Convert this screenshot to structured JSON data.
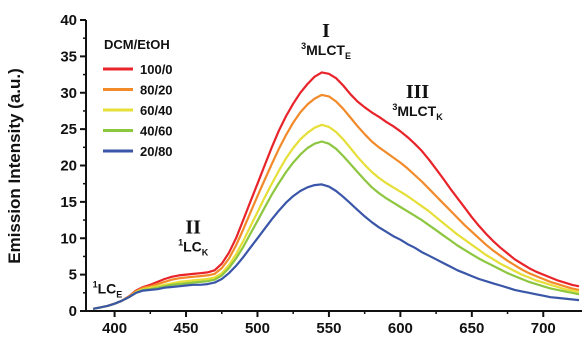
{
  "chart_data": {
    "type": "line",
    "title": "",
    "xlabel": "",
    "ylabel": "Emission Intensity (a.u.)",
    "xlim": [
      380,
      725
    ],
    "ylim": [
      0,
      40
    ],
    "x_ticks": [
      400,
      450,
      500,
      550,
      600,
      650,
      700
    ],
    "y_ticks": [
      0,
      5,
      10,
      15,
      20,
      25,
      30,
      35,
      40
    ],
    "grid": false,
    "legend": {
      "title": "DCM/EtOH",
      "position": "top-left"
    },
    "x": [
      385,
      390,
      395,
      400,
      405,
      410,
      415,
      420,
      425,
      430,
      435,
      440,
      445,
      450,
      455,
      460,
      465,
      470,
      475,
      480,
      485,
      490,
      495,
      500,
      505,
      510,
      515,
      520,
      525,
      530,
      535,
      540,
      545,
      550,
      555,
      560,
      565,
      570,
      575,
      580,
      585,
      590,
      595,
      600,
      605,
      610,
      615,
      620,
      625,
      630,
      635,
      640,
      645,
      650,
      655,
      660,
      665,
      670,
      675,
      680,
      685,
      690,
      695,
      700,
      705,
      710,
      715,
      720,
      725
    ],
    "series": [
      {
        "name": "100/0",
        "color": "#e8232a",
        "values": [
          0.3,
          0.5,
          0.7,
          1.0,
          1.4,
          2.0,
          2.8,
          3.3,
          3.6,
          4.0,
          4.4,
          4.7,
          4.9,
          5.0,
          5.1,
          5.2,
          5.3,
          5.6,
          6.5,
          8.0,
          10.0,
          12.5,
          15.0,
          17.5,
          20.0,
          22.5,
          24.8,
          26.8,
          28.5,
          30.0,
          31.2,
          32.2,
          32.8,
          32.6,
          32.0,
          31.0,
          29.8,
          28.8,
          28.0,
          27.3,
          26.7,
          26.0,
          25.4,
          24.7,
          23.9,
          23.0,
          22.0,
          20.8,
          19.5,
          18.2,
          16.8,
          15.5,
          14.2,
          12.9,
          11.7,
          10.6,
          9.6,
          8.7,
          7.9,
          7.1,
          6.5,
          5.9,
          5.4,
          5.0,
          4.6,
          4.2,
          3.9,
          3.6,
          3.4
        ]
      },
      {
        "name": "80/20",
        "color": "#f28a2a",
        "values": [
          0.3,
          0.5,
          0.7,
          1.0,
          1.4,
          2.0,
          2.7,
          3.2,
          3.4,
          3.7,
          4.0,
          4.3,
          4.5,
          4.6,
          4.7,
          4.8,
          4.9,
          5.1,
          5.9,
          7.2,
          9.0,
          11.2,
          13.5,
          15.8,
          18.0,
          20.2,
          22.3,
          24.2,
          25.9,
          27.3,
          28.4,
          29.2,
          29.7,
          29.5,
          28.8,
          27.8,
          26.6,
          25.4,
          24.3,
          23.3,
          22.5,
          21.8,
          21.1,
          20.4,
          19.6,
          18.7,
          17.8,
          16.8,
          15.8,
          14.8,
          13.8,
          12.8,
          11.8,
          10.9,
          10.0,
          9.1,
          8.3,
          7.6,
          6.9,
          6.3,
          5.7,
          5.2,
          4.8,
          4.4,
          4.0,
          3.7,
          3.4,
          3.1,
          2.9
        ]
      },
      {
        "name": "60/40",
        "color": "#e6df38",
        "values": [
          0.3,
          0.5,
          0.7,
          1.0,
          1.4,
          1.9,
          2.6,
          3.0,
          3.2,
          3.4,
          3.6,
          3.8,
          4.0,
          4.1,
          4.2,
          4.3,
          4.4,
          4.6,
          5.2,
          6.3,
          7.8,
          9.6,
          11.6,
          13.6,
          15.6,
          17.5,
          19.3,
          21.0,
          22.4,
          23.6,
          24.5,
          25.2,
          25.6,
          25.3,
          24.6,
          23.6,
          22.4,
          21.2,
          20.1,
          19.1,
          18.3,
          17.6,
          17.0,
          16.4,
          15.8,
          15.1,
          14.4,
          13.7,
          12.9,
          12.1,
          11.3,
          10.5,
          9.8,
          9.1,
          8.4,
          7.7,
          7.1,
          6.5,
          6.0,
          5.5,
          5.0,
          4.6,
          4.2,
          3.9,
          3.6,
          3.3,
          3.0,
          2.8,
          2.6
        ]
      },
      {
        "name": "40/60",
        "color": "#8dc63f",
        "values": [
          0.3,
          0.5,
          0.7,
          1.0,
          1.4,
          1.9,
          2.5,
          2.9,
          3.0,
          3.2,
          3.4,
          3.6,
          3.7,
          3.8,
          3.9,
          4.0,
          4.1,
          4.3,
          4.9,
          5.9,
          7.2,
          8.8,
          10.6,
          12.4,
          14.2,
          16.0,
          17.6,
          19.1,
          20.4,
          21.5,
          22.4,
          23.0,
          23.3,
          23.0,
          22.3,
          21.3,
          20.2,
          19.1,
          18.0,
          17.0,
          16.2,
          15.5,
          14.9,
          14.3,
          13.7,
          13.1,
          12.5,
          11.8,
          11.1,
          10.4,
          9.7,
          9.0,
          8.4,
          7.8,
          7.2,
          6.7,
          6.2,
          5.7,
          5.2,
          4.8,
          4.4,
          4.0,
          3.7,
          3.4,
          3.1,
          2.9,
          2.7,
          2.5,
          2.3
        ]
      },
      {
        "name": "20/80",
        "color": "#3a56a8",
        "values": [
          0.3,
          0.5,
          0.7,
          1.0,
          1.4,
          1.9,
          2.5,
          2.8,
          2.9,
          3.0,
          3.2,
          3.3,
          3.4,
          3.5,
          3.6,
          3.6,
          3.7,
          3.9,
          4.4,
          5.2,
          6.2,
          7.4,
          8.7,
          10.0,
          11.3,
          12.6,
          13.8,
          14.9,
          15.8,
          16.5,
          17.0,
          17.3,
          17.4,
          17.1,
          16.5,
          15.7,
          14.8,
          13.9,
          13.0,
          12.2,
          11.5,
          10.9,
          10.3,
          9.8,
          9.2,
          8.7,
          8.1,
          7.6,
          7.1,
          6.6,
          6.1,
          5.6,
          5.2,
          4.8,
          4.4,
          4.1,
          3.8,
          3.5,
          3.2,
          2.9,
          2.7,
          2.5,
          2.3,
          2.1,
          1.9,
          1.8,
          1.7,
          1.6,
          1.5
        ]
      }
    ],
    "annotations": [
      {
        "roman": "I",
        "label": "MLCT",
        "sup": "3",
        "sub": "E",
        "x": 548,
        "y": 35.2
      },
      {
        "roman": "II",
        "label": "LC",
        "sup": "1",
        "sub": "K",
        "x": 455,
        "y": 8.2
      },
      {
        "roman": "III",
        "label": "MLCT",
        "sup": "3",
        "sub": "K",
        "x": 612,
        "y": 26.8
      },
      {
        "roman": "",
        "label": "LC",
        "sup": "1",
        "sub": "E",
        "x": 395,
        "y": 2.4
      }
    ]
  }
}
